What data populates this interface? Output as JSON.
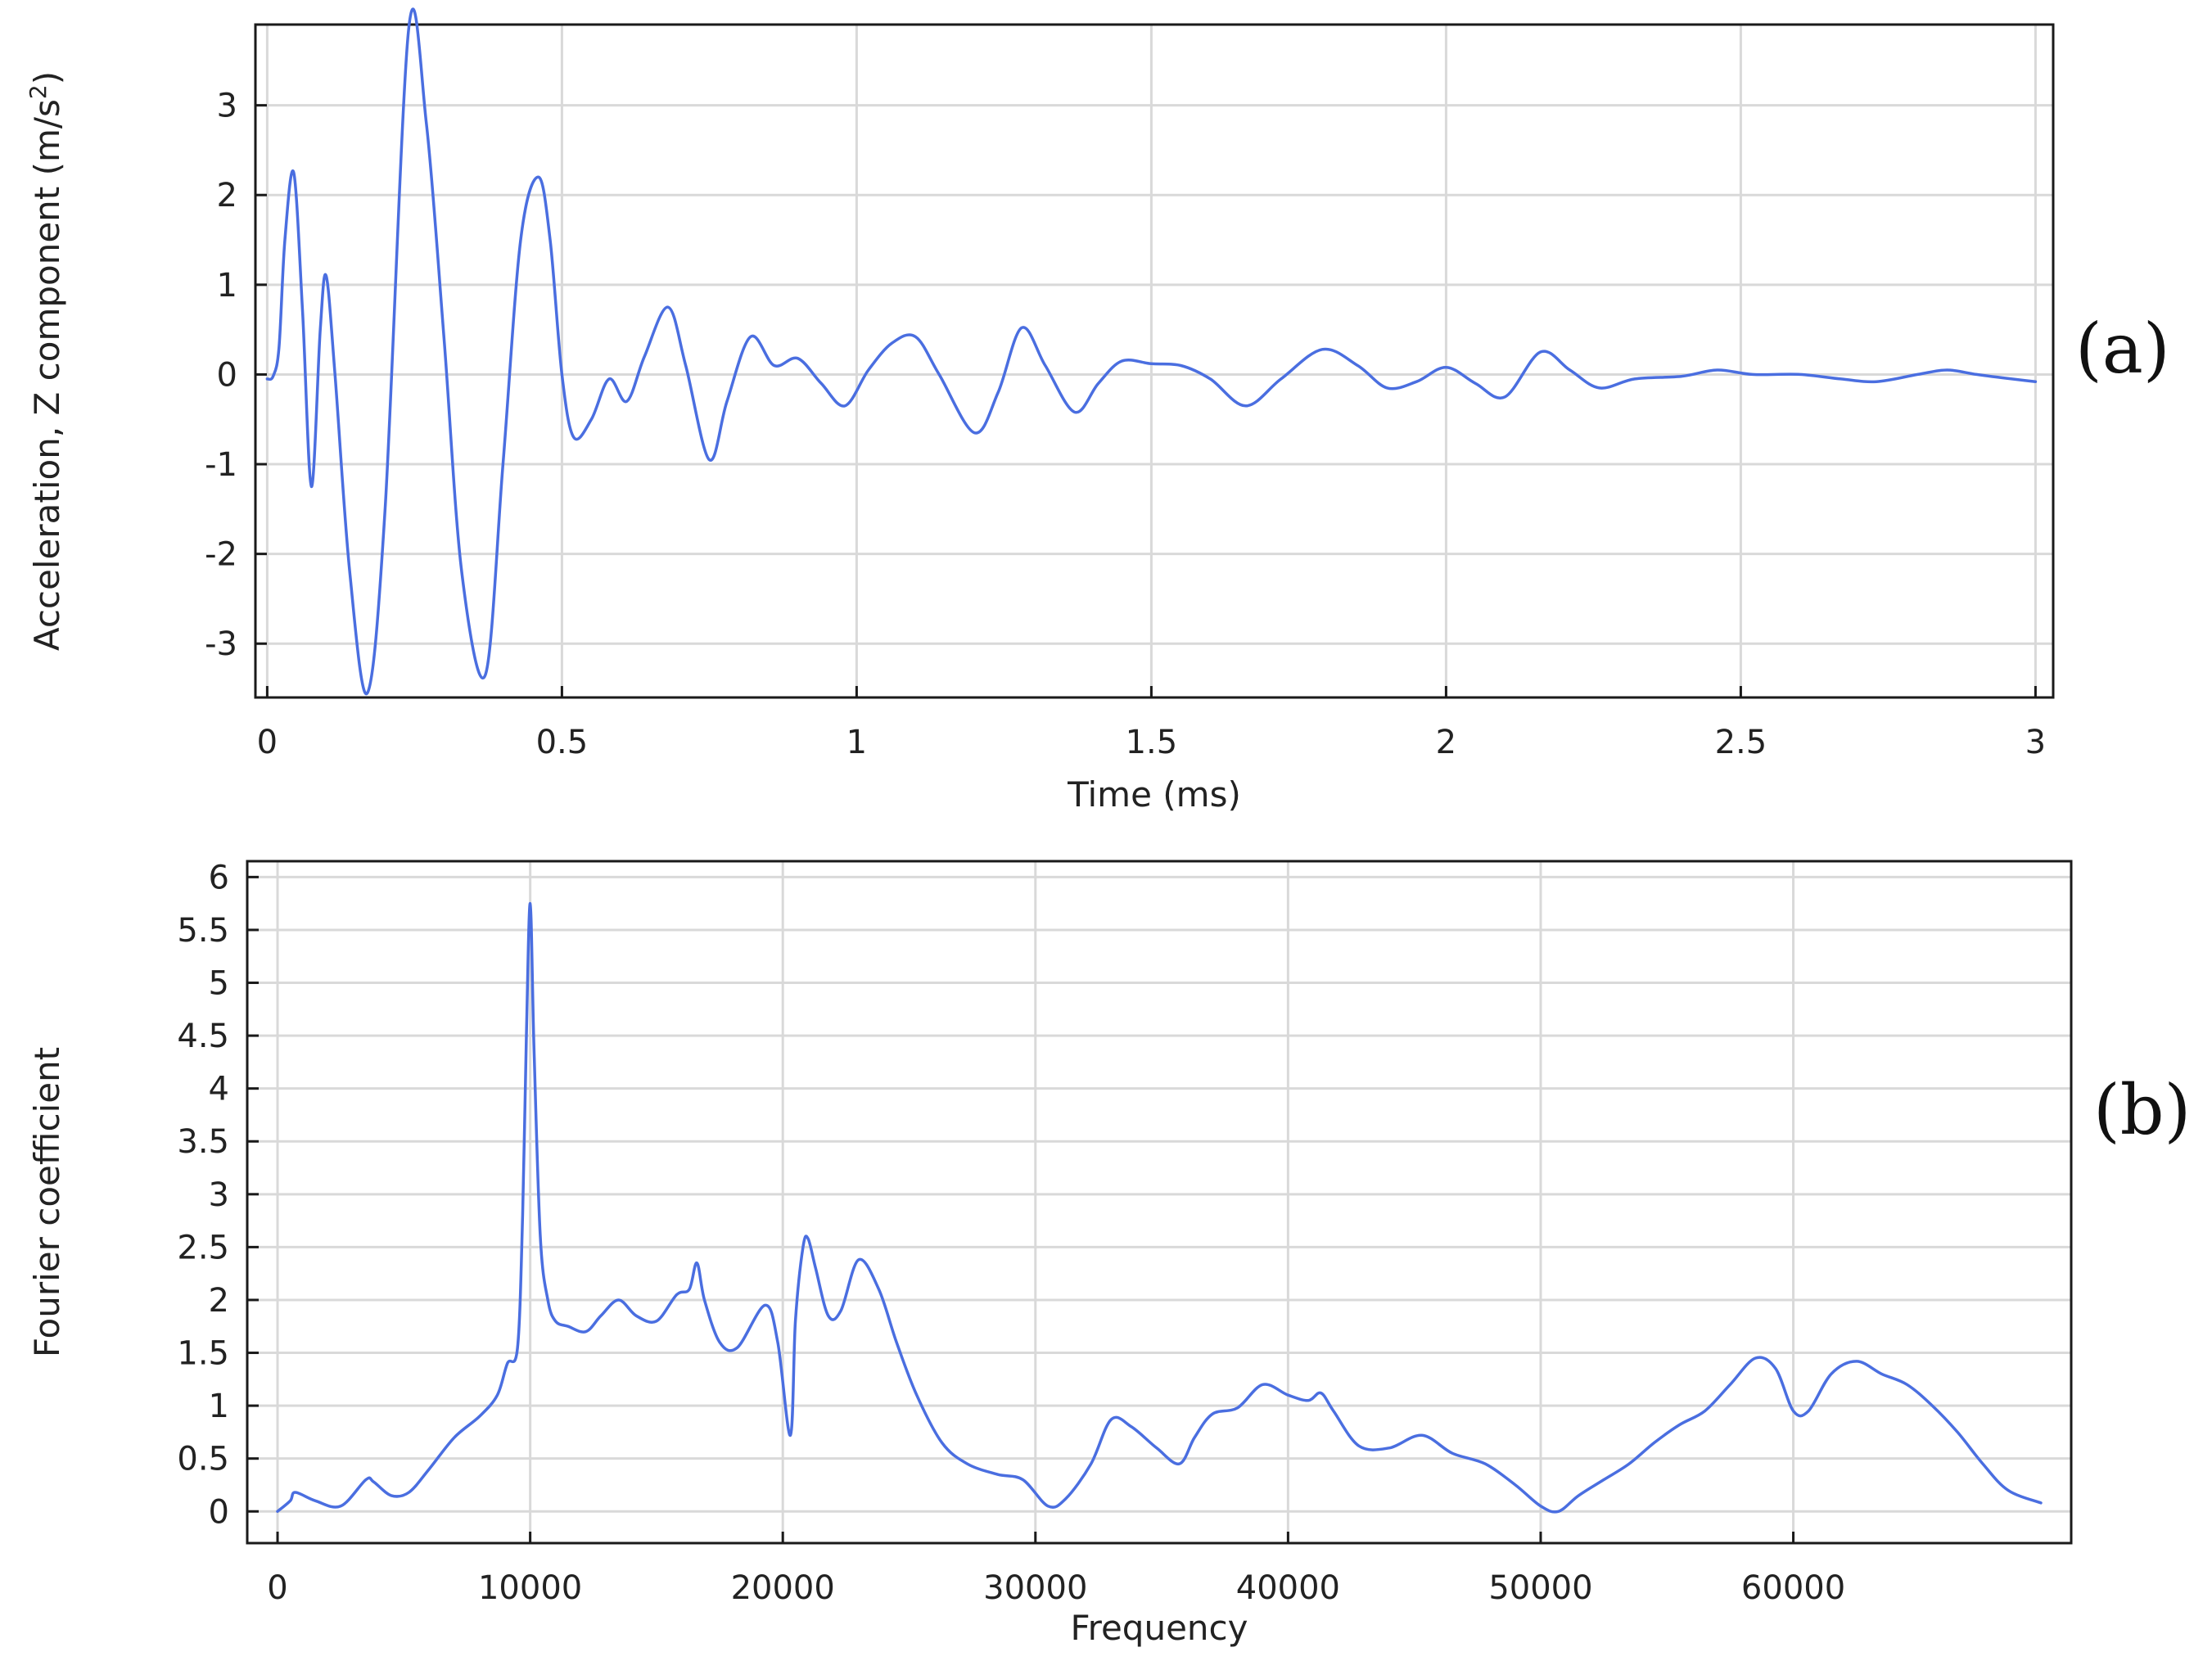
{
  "colors": {
    "series": "#4a6ee0",
    "grid": "#d9d9d9",
    "axis": "#1a1a1a"
  },
  "chart_data": [
    {
      "type": "line",
      "panel_label": "(a)",
      "xlabel": "Time (ms)",
      "ylabel_main": "Acceleration, Z component (m/s",
      "ylabel_sup": "2",
      "ylabel_end": ")",
      "xlim": [
        -0.02,
        3.03
      ],
      "ylim": [
        -3.6,
        3.9
      ],
      "xticks": [
        0,
        0.5,
        1,
        1.5,
        2,
        2.5,
        3
      ],
      "xtick_labels": [
        "0",
        "0.5",
        "1",
        "1.5",
        "2",
        "2.5",
        "3"
      ],
      "yticks": [
        -3,
        -2,
        -1,
        0,
        1,
        2,
        3
      ],
      "ytick_labels": [
        "-3",
        "-2",
        "-1",
        "0",
        "1",
        "2",
        "3"
      ],
      "grid": true,
      "series": [
        {
          "x": [
            0.0,
            0.01,
            0.02,
            0.03,
            0.045,
            0.06,
            0.075,
            0.09,
            0.1,
            0.115,
            0.14,
            0.17,
            0.2,
            0.24,
            0.27,
            0.3,
            0.33,
            0.37,
            0.4,
            0.43,
            0.46,
            0.48,
            0.5,
            0.52,
            0.55,
            0.58,
            0.61,
            0.64,
            0.68,
            0.71,
            0.75,
            0.78,
            0.82,
            0.86,
            0.9,
            0.94,
            0.98,
            1.02,
            1.06,
            1.1,
            1.14,
            1.2,
            1.24,
            1.28,
            1.32,
            1.37,
            1.41,
            1.45,
            1.5,
            1.55,
            1.6,
            1.66,
            1.72,
            1.79,
            1.85,
            1.9,
            1.95,
            2.0,
            2.05,
            2.1,
            2.16,
            2.21,
            2.26,
            2.32,
            2.4,
            2.46,
            2.52,
            2.6,
            2.67,
            2.73,
            2.8,
            2.85,
            2.9,
            2.96,
            3.0
          ],
          "y": [
            -0.05,
            -0.02,
            0.3,
            1.5,
            2.25,
            0.7,
            -1.25,
            0.5,
            1.1,
            0.0,
            -2.2,
            -3.55,
            -1.5,
            3.85,
            2.8,
            0.4,
            -2.2,
            -3.35,
            -1.0,
            1.5,
            2.2,
            1.5,
            0.0,
            -0.7,
            -0.5,
            -0.05,
            -0.3,
            0.2,
            0.75,
            0.1,
            -0.95,
            -0.3,
            0.42,
            0.1,
            0.18,
            -0.1,
            -0.35,
            0.05,
            0.35,
            0.42,
            0.0,
            -0.65,
            -0.2,
            0.52,
            0.1,
            -0.42,
            -0.1,
            0.15,
            0.12,
            0.1,
            -0.05,
            -0.35,
            -0.05,
            0.28,
            0.1,
            -0.15,
            -0.08,
            0.08,
            -0.1,
            -0.25,
            0.25,
            0.05,
            -0.15,
            -0.05,
            -0.02,
            0.05,
            0.0,
            0.0,
            -0.05,
            -0.08,
            0.0,
            0.05,
            0.0,
            -0.05,
            -0.08
          ]
        }
      ]
    },
    {
      "type": "line",
      "panel_label": "(b)",
      "xlabel": "Frequency",
      "ylabel_main": "Fourier coefficient",
      "xlim": [
        -1200,
        71000
      ],
      "ylim": [
        -0.3,
        6.15
      ],
      "xticks": [
        0,
        10000,
        20000,
        30000,
        40000,
        50000,
        60000
      ],
      "xtick_labels": [
        "0",
        "10000",
        "20000",
        "30000",
        "40000",
        "50000",
        "60000"
      ],
      "yticks": [
        0,
        0.5,
        1,
        1.5,
        2,
        2.5,
        3,
        3.5,
        4,
        4.5,
        5,
        5.5,
        6
      ],
      "ytick_labels": [
        "0",
        "0.5",
        "1",
        "1.5",
        "2",
        "2.5",
        "3",
        "3.5",
        "4",
        "4.5",
        "5",
        "5.5",
        "6"
      ],
      "grid": true,
      "series": [
        {
          "x": [
            0,
            500,
            700,
            1500,
            2500,
            3500,
            3800,
            4500,
            5200,
            6000,
            7000,
            8000,
            8700,
            9100,
            9500,
            9700,
            9850,
            10000,
            10150,
            10400,
            10700,
            11000,
            11500,
            12200,
            12800,
            13500,
            14200,
            15000,
            15800,
            16300,
            16600,
            16900,
            17500,
            18200,
            19300,
            19800,
            20300,
            20500,
            20800,
            21000,
            21300,
            21800,
            22300,
            23000,
            23800,
            24500,
            25300,
            26300,
            27300,
            28500,
            29500,
            30500,
            31200,
            32200,
            33000,
            33800,
            34800,
            35700,
            36300,
            37000,
            38000,
            39000,
            40000,
            40800,
            41300,
            41800,
            42800,
            44000,
            45300,
            46500,
            47800,
            49000,
            50000,
            50700,
            51500,
            52500,
            53500,
            54500,
            55500,
            56500,
            57500,
            58500,
            59300,
            60000,
            60600,
            61500,
            62500,
            63500,
            64500,
            65500,
            66500,
            67500,
            68500,
            69800
          ],
          "y": [
            0.0,
            0.1,
            0.18,
            0.1,
            0.05,
            0.3,
            0.28,
            0.15,
            0.18,
            0.4,
            0.7,
            0.9,
            1.1,
            1.4,
            1.55,
            2.8,
            4.5,
            5.75,
            4.4,
            2.6,
            2.0,
            1.8,
            1.75,
            1.7,
            1.85,
            2.0,
            1.85,
            1.8,
            2.05,
            2.1,
            2.35,
            2.0,
            1.6,
            1.55,
            1.95,
            1.6,
            0.72,
            1.8,
            2.5,
            2.58,
            2.3,
            1.85,
            1.9,
            2.38,
            2.1,
            1.6,
            1.1,
            0.65,
            0.45,
            0.35,
            0.3,
            0.05,
            0.12,
            0.45,
            0.87,
            0.8,
            0.6,
            0.45,
            0.7,
            0.92,
            0.98,
            1.2,
            1.1,
            1.05,
            1.12,
            0.95,
            0.62,
            0.6,
            0.72,
            0.55,
            0.45,
            0.25,
            0.05,
            0.0,
            0.15,
            0.3,
            0.45,
            0.65,
            0.82,
            0.95,
            1.2,
            1.45,
            1.35,
            0.95,
            0.95,
            1.3,
            1.42,
            1.3,
            1.2,
            1.0,
            0.75,
            0.45,
            0.2,
            0.08
          ]
        }
      ]
    }
  ]
}
